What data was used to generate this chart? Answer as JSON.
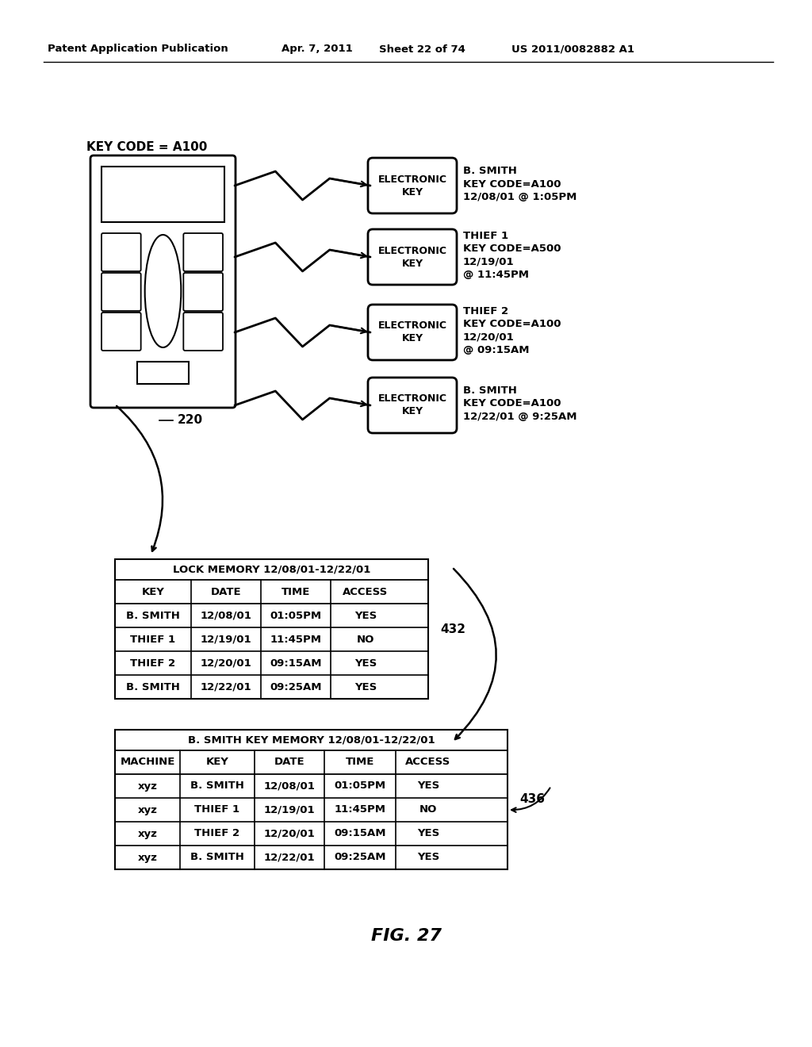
{
  "bg_color": "#ffffff",
  "header_text": "Patent Application Publication",
  "header_date": "Apr. 7, 2011",
  "header_sheet": "Sheet 22 of 74",
  "header_patent": "US 2011/0082882 A1",
  "key_code_label": "KEY CODE = A100",
  "device_label": "220",
  "electronic_keys": [
    {
      "label": "ELECTRONIC\nKEY",
      "info": "B. SMITH\nKEY CODE=A100\n12/08/01 @ 1:05PM"
    },
    {
      "label": "ELECTRONIC\nKEY",
      "info": "THIEF 1\nKEY CODE=A500\n12/19/01\n@ 11:45PM"
    },
    {
      "label": "ELECTRONIC\nKEY",
      "info": "THIEF 2\nKEY CODE=A100\n12/20/01\n@ 09:15AM"
    },
    {
      "label": "ELECTRONIC\nKEY",
      "info": "B. SMITH\nKEY CODE=A100\n12/22/01 @ 9:25AM"
    }
  ],
  "lock_memory_title": "LOCK MEMORY 12/08/01-12/22/01",
  "lock_memory_headers": [
    "KEY",
    "DATE",
    "TIME",
    "ACCESS"
  ],
  "lock_memory_rows": [
    [
      "B. SMITH",
      "12/08/01",
      "01:05PM",
      "YES"
    ],
    [
      "THIEF 1",
      "12/19/01",
      "11:45PM",
      "NO"
    ],
    [
      "THIEF 2",
      "12/20/01",
      "09:15AM",
      "YES"
    ],
    [
      "B. SMITH",
      "12/22/01",
      "09:25AM",
      "YES"
    ]
  ],
  "lock_memory_label": "432",
  "bsmith_memory_title": "B. SMITH KEY MEMORY 12/08/01-12/22/01",
  "bsmith_memory_headers": [
    "MACHINE",
    "KEY",
    "DATE",
    "TIME",
    "ACCESS"
  ],
  "bsmith_memory_rows": [
    [
      "xyz",
      "B. SMITH",
      "12/08/01",
      "01:05PM",
      "YES"
    ],
    [
      "xyz",
      "THIEF 1",
      "12/19/01",
      "11:45PM",
      "NO"
    ],
    [
      "xyz",
      "THIEF 2",
      "12/20/01",
      "09:15AM",
      "YES"
    ],
    [
      "xyz",
      "B. SMITH",
      "12/22/01",
      "09:25AM",
      "YES"
    ]
  ],
  "bsmith_memory_label": "436",
  "fig_label": "FIG. 27"
}
